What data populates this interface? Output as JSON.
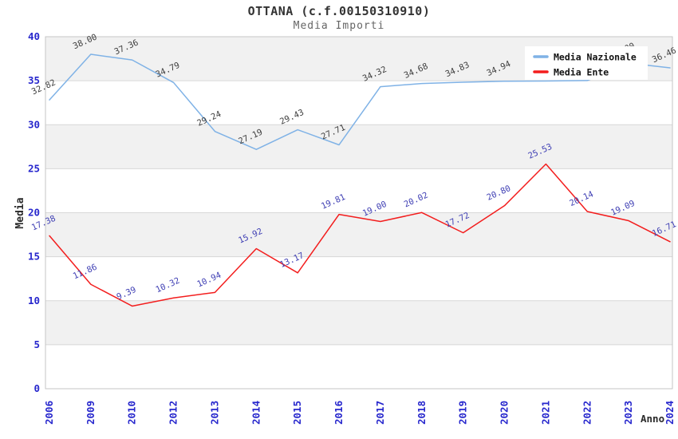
{
  "chart": {
    "accent_colors": {
      "nazionale_line": "#7fb2e6",
      "ente_line": "#f31d1d",
      "tick_label_blue": "#2727cd",
      "nazionale_point_label": "#3d3d3d",
      "ente_point_label": "#3f3fb4",
      "band_gray": "#f1f1f1",
      "grid_line": "#d7d7d7",
      "plot_border": "#c6c6c6",
      "title_color": "#333333",
      "subtitle_color": "#666666",
      "axis_title_color": "#2b2b2b",
      "legend_text_color": "#111111",
      "legend_background": "#ffffff"
    }
  },
  "chart_data": {
    "type": "line",
    "title": "OTTANA (c.f.00150310910)",
    "subtitle": "Media Importi",
    "xlabel": "Anno",
    "ylabel": "Media",
    "ylim": [
      0,
      40
    ],
    "y_ticks": [
      0,
      5,
      10,
      15,
      20,
      25,
      30,
      35,
      40
    ],
    "grid": "horizontal-bands-alternating",
    "legend_position": "top-right-inside",
    "legend_entries": [
      "Media Nazionale",
      "Media Ente"
    ],
    "categories": [
      "2006",
      "2009",
      "2010",
      "2012",
      "2013",
      "2014",
      "2015",
      "2016",
      "2017",
      "2018",
      "2019",
      "2020",
      "2021",
      "2022",
      "2023",
      "2024"
    ],
    "series": [
      {
        "name": "Media Nazionale",
        "color": "#7fb2e6",
        "label_color": "#3d3d3d",
        "values": [
          32.82,
          38.0,
          37.36,
          34.79,
          29.24,
          27.19,
          29.43,
          27.71,
          34.32,
          34.68,
          34.83,
          34.94,
          34.97,
          35.02,
          37.0,
          36.46
        ],
        "labels_hidden_behind_legend_indices": [
          12,
          13,
          14
        ],
        "estimated_value_indices": [
          12,
          13,
          14
        ]
      },
      {
        "name": "Media Ente",
        "color": "#f31d1d",
        "label_color": "#3f3fb4",
        "values": [
          17.38,
          11.86,
          9.39,
          10.32,
          10.94,
          15.92,
          13.17,
          19.81,
          19.0,
          20.02,
          17.72,
          20.8,
          25.53,
          20.14,
          19.09,
          16.71
        ],
        "labels_hidden_behind_legend_indices": [],
        "estimated_value_indices": []
      }
    ]
  }
}
